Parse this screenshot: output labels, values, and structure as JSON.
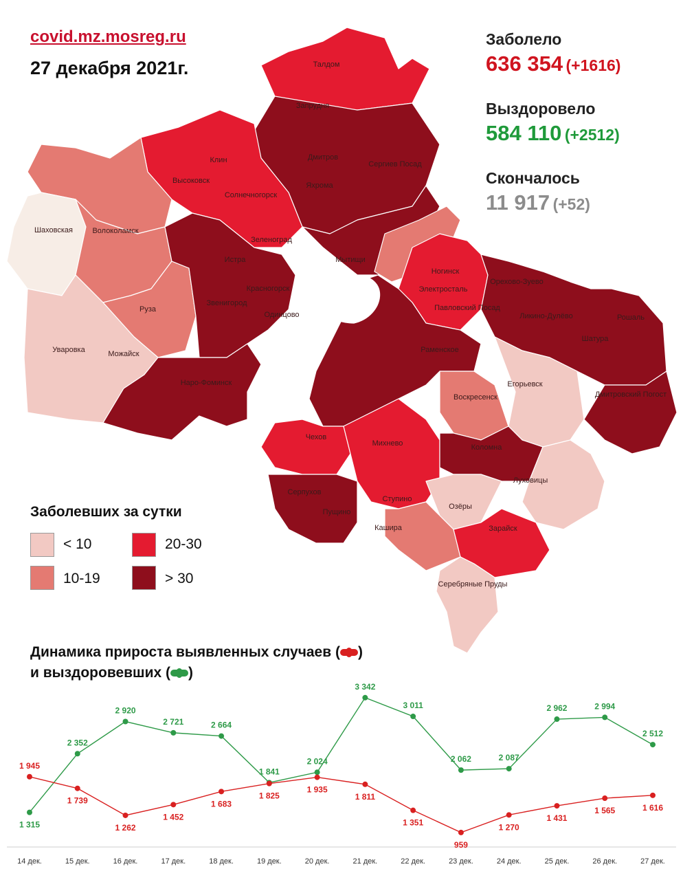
{
  "header": {
    "site": "covid.mz.mosreg.ru",
    "date": "27 декабря 2021г."
  },
  "stats": {
    "sick": {
      "label": "Заболело",
      "value": "636 354",
      "delta": "(+1616)",
      "color": "#d0141f"
    },
    "recovered": {
      "label": "Выздоровело",
      "value": "584 110",
      "delta": "(+2512)",
      "color": "#1f9a3a"
    },
    "died": {
      "label": "Скончалось",
      "value": "11 917",
      "delta": "(+52)",
      "color": "#8c8c8c"
    }
  },
  "map": {
    "labels": [
      "Талдом",
      "Запрудня",
      "Клин",
      "Дмитров",
      "Сергиев Посад",
      "Высоковск",
      "Яхрома",
      "Солнечногорск",
      "Шаховская",
      "Волоколамск",
      "Зеленоград",
      "Истра",
      "Мытищи",
      "Ногинск",
      "Электросталь",
      "Павловский Посад",
      "Орехово-Зуево",
      "Ликино-Дулёво",
      "Рошаль",
      "Шатура",
      "Красногорск",
      "Звенигород",
      "Руза",
      "Одинцово",
      "Уваровка",
      "Можайск",
      "Наро-Фоминск",
      "Раменское",
      "Егорьевск",
      "Дмитровский Погост",
      "Воскресенск",
      "Чехов",
      "Михнево",
      "Коломна",
      "Луховицы",
      "Серпухов",
      "Пущино",
      "Ступино",
      "Озёры",
      "Кашира",
      "Зарайск",
      "Серебряные Пруды"
    ],
    "colors": {
      "lt10": "#f2c9c3",
      "10_19": "#e47a72",
      "20_30": "#e41b30",
      "gt30": "#8e0e1c"
    }
  },
  "legend": {
    "title": "Заболевших за сутки",
    "items": [
      {
        "label": "< 10",
        "color": "#f2c9c3"
      },
      {
        "label": "20-30",
        "color": "#e41b30"
      },
      {
        "label": "10-19",
        "color": "#e47a72"
      },
      {
        "label": "> 30",
        "color": "#8e0e1c"
      }
    ]
  },
  "dynamics": {
    "line1": "Динамика прироста выявленных случаев (",
    "line1_end": ")",
    "line2": "и выздоровевших (",
    "line2_end": ")"
  },
  "chart_data": {
    "type": "line",
    "categories": [
      "14 дек.",
      "15 дек.",
      "16 дек.",
      "17 дек.",
      "18 дек.",
      "19 дек.",
      "20 дек.",
      "21 дек.",
      "22 дек.",
      "23 дек.",
      "24 дек.",
      "25 дек.",
      "26 дек.",
      "27 дек."
    ],
    "series": [
      {
        "color": "#2e9a48",
        "values": [
          1315,
          2352,
          2920,
          2721,
          2664,
          1841,
          2024,
          3342,
          3011,
          2062,
          2087,
          2962,
          2994,
          2512
        ],
        "labels": [
          "1 315",
          "2 352",
          "2 920",
          "2 721",
          "2 664",
          "1 841",
          "2 024",
          "3 342",
          "3 011",
          "2 062",
          "2 087",
          "2 962",
          "2 994",
          "2 512"
        ]
      },
      {
        "color": "#d92020",
        "values": [
          1945,
          1739,
          1262,
          1452,
          1683,
          1825,
          1935,
          1811,
          1351,
          959,
          1270,
          1431,
          1565,
          1616
        ],
        "labels": [
          "1 945",
          "1 739",
          "1 262",
          "1 452",
          "1 683",
          "1 825",
          "1 935",
          "1 811",
          "1 351",
          "959",
          "1 270",
          "1 431",
          "1 565",
          "1 616"
        ]
      }
    ],
    "grid": false
  }
}
